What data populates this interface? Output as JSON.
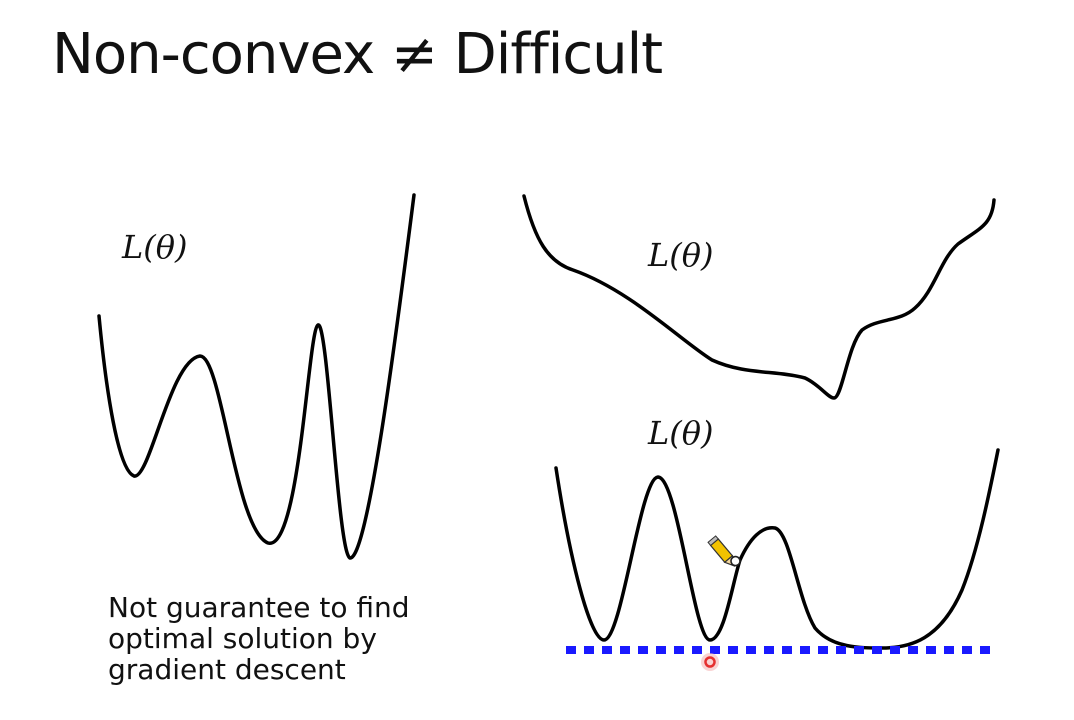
{
  "slide": {
    "title": "Non-convex ≠ Difficult",
    "caption": "Not guarantee to find optimal solution by gradient descent"
  },
  "curves": {
    "left_label": "L(θ)",
    "top_right_label": "L(θ)",
    "bottom_right_label": "L(θ)"
  },
  "colors": {
    "curve": "#000000",
    "optimal_line": "#1a1aff",
    "laser_pointer": "#e53030"
  },
  "icons": {
    "pen_cursor": "pencil-icon",
    "laser_pointer": "laser-dot-icon"
  }
}
